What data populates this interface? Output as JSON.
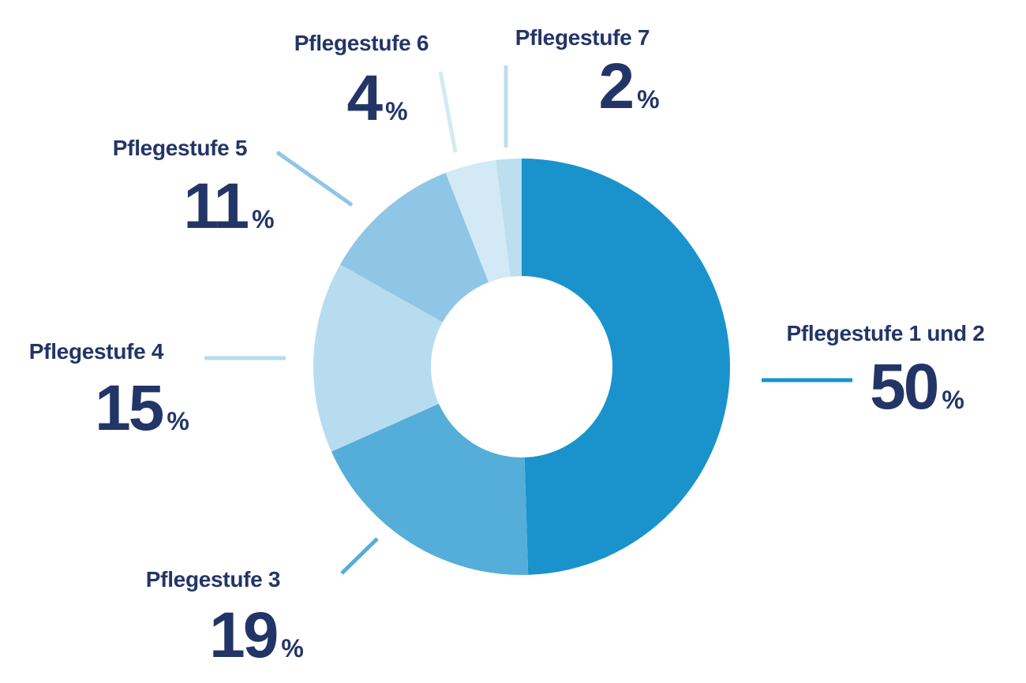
{
  "chart_data": {
    "type": "pie",
    "variant": "donut",
    "title": "",
    "unit": "%",
    "text_color": "#233567",
    "slices": [
      {
        "label": "Pflegestufe 1 und 2",
        "value": 50,
        "color": "#1a93cc"
      },
      {
        "label": "Pflegestufe 3",
        "value": 19,
        "color": "#55add9"
      },
      {
        "label": "Pflegestufe 4",
        "value": 15,
        "color": "#b7dcf0"
      },
      {
        "label": "Pflegestufe 5",
        "value": 11,
        "color": "#8fc6e5"
      },
      {
        "label": "Pflegestufe 6",
        "value": 4,
        "color": "#d3e9f6"
      },
      {
        "label": "Pflegestufe 7",
        "value": 2,
        "color": "#bcdeef"
      }
    ]
  }
}
